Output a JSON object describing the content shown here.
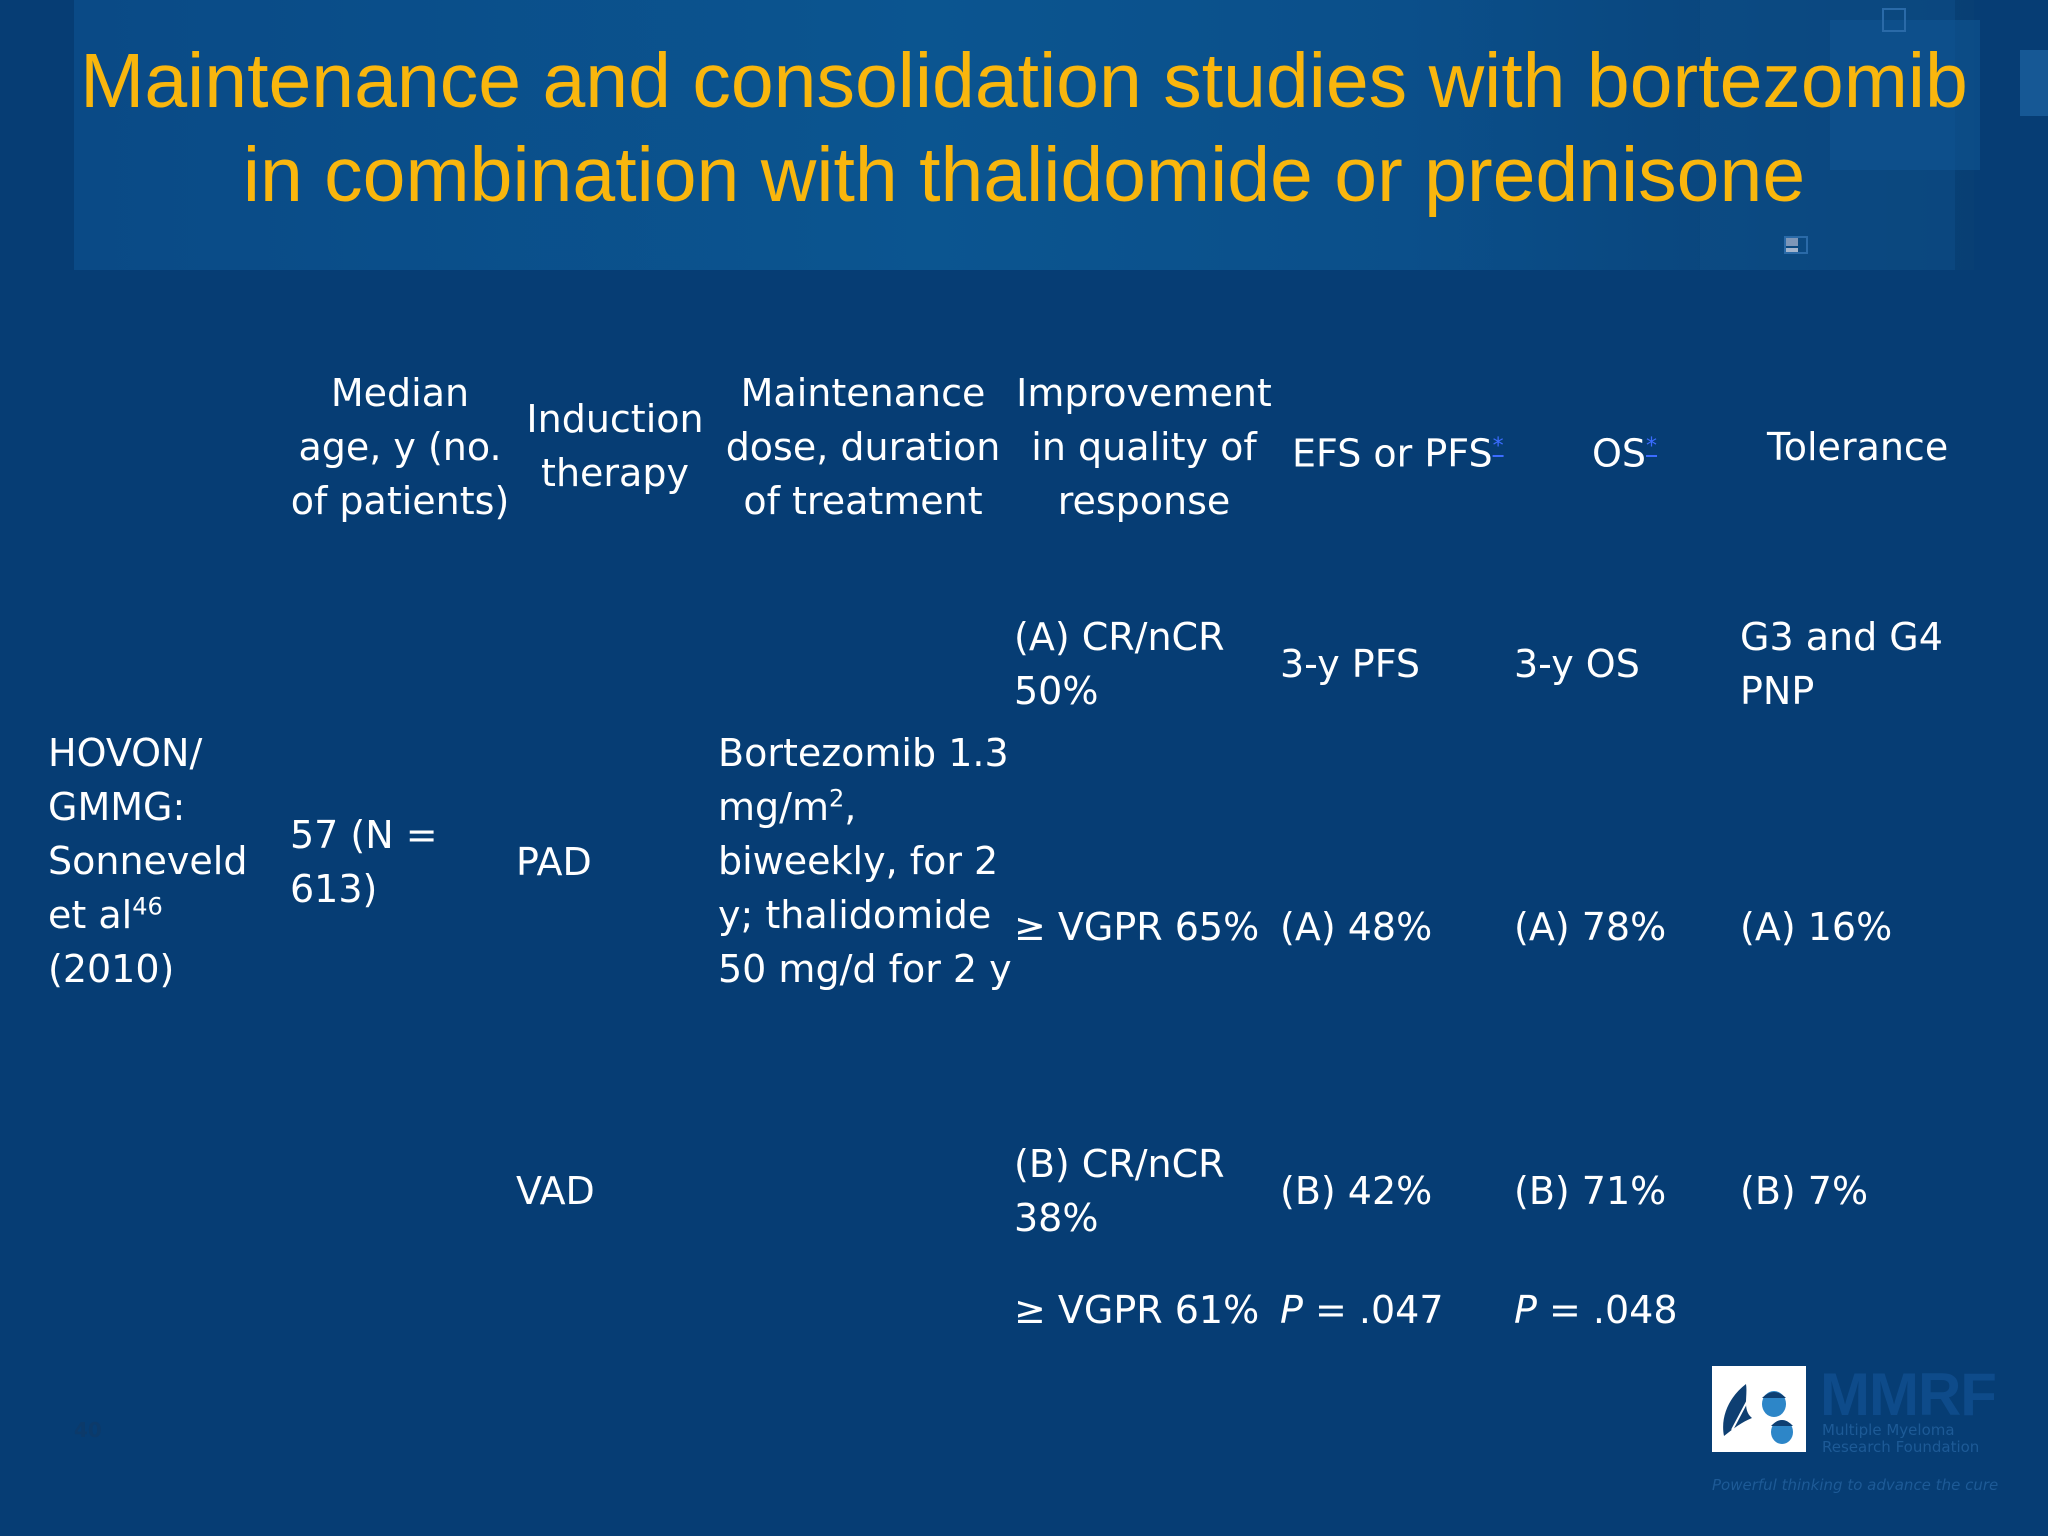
{
  "slide": {
    "title_line1": "Maintenance and consolidation studies with bortezomib",
    "title_line2": "in combination with thalidomide or prednisone",
    "page_number": "40",
    "colors": {
      "background": "#063d74",
      "title": "#f9b60d",
      "text": "#ffffff",
      "footnote_link": "#3b6cff"
    }
  },
  "headers": {
    "median_age": [
      "Median",
      "age, y (no.",
      "of patients)"
    ],
    "induction": [
      "Induction",
      "therapy"
    ],
    "maintenance": [
      "Maintenance",
      "dose, duration",
      "of treatment"
    ],
    "improvement": [
      "Improvement",
      "in quality of",
      "response"
    ],
    "efs": "EFS or PFS",
    "efs_mark": "*",
    "os": "OS",
    "os_mark": "*",
    "tolerance": "Tolerance"
  },
  "study": {
    "name_lines": [
      "HOVON/",
      "GMMG:",
      "Sonneveld",
      "et al"
    ],
    "ref": "46",
    "year": "(2010)",
    "median_age": [
      "57 (N =",
      "613)"
    ],
    "maintenance_lines": [
      "Bortezomib 1.3",
      "mg/m",
      "2",
      ",",
      "biweekly, for 2",
      "y; thalidomide",
      "50 mg/d for 2 y"
    ]
  },
  "rows": {
    "a_response": [
      "(A) CR/nCR",
      "50%"
    ],
    "a_pfs_label": "3-y PFS",
    "a_os_label": "3-y OS",
    "a_tol_label": [
      "G3 and G4",
      "PNP"
    ],
    "pad": "PAD",
    "a_vgpr": "≥ VGPR 65%",
    "a_pfs": "(A) 48%",
    "a_os": "(A) 78%",
    "a_tol": "(A) 16%",
    "vad": "VAD",
    "b_response": [
      "(B) CR/nCR",
      "38%"
    ],
    "b_pfs": "(B) 42%",
    "b_os": "(B) 71%",
    "b_tol": "(B) 7%",
    "b_vgpr": "≥ VGPR 61%",
    "p_pfs_label": "P",
    "p_pfs_value": " = .047",
    "p_os_label": "P",
    "p_os_value": " = .048"
  },
  "logo": {
    "name": "MMRF",
    "sub1": "Multiple Myeloma",
    "sub2": "Research Foundation",
    "tagline": "Powerful thinking to advance the cure",
    "icon": "oak-leaf-acorn-icon"
  }
}
